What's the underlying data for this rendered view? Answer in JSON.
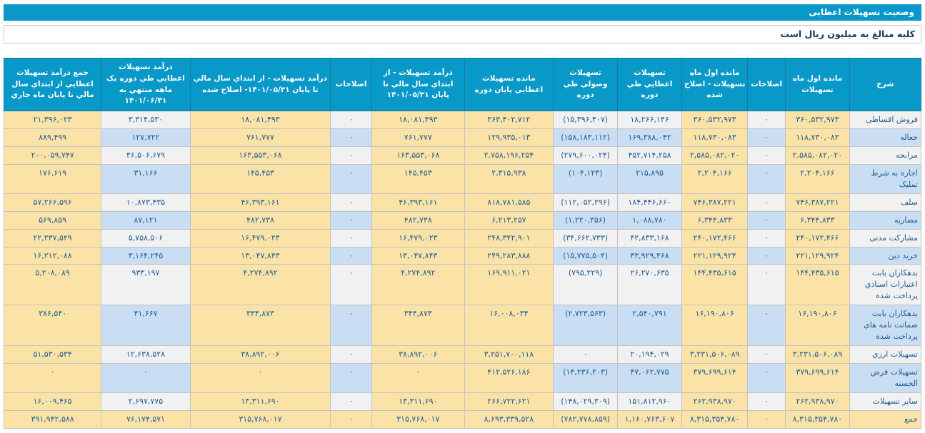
{
  "title_bar": {
    "text": "وضعیت تسهیلات اعطایی"
  },
  "note_bar": {
    "text": "کلیه مبالغ به میلیون ریال است"
  },
  "colors": {
    "accent": "#0999C8",
    "cream_cell": "#FBE3A8",
    "row_blue": "#C9DEF2",
    "row_gray": "#F1F1F1",
    "number_text": "#1F5D94",
    "negative_text": "#E00000"
  },
  "table": {
    "columns": [
      {
        "label": "شرح",
        "kind": "label",
        "width": "7.8%"
      },
      {
        "label": "مانده اول ماه تسهیلات",
        "kind": "cream",
        "width": "7.0%"
      },
      {
        "label": "اصلاحات",
        "kind": "plain",
        "width": "4.1%"
      },
      {
        "label": "مانده اول ماه تسهیلات - اصلاح شده",
        "kind": "cream",
        "width": "7.2%"
      },
      {
        "label": "تسهیلات اعطایي طي دوره",
        "kind": "plain",
        "width": "7.0%"
      },
      {
        "label": "تسهیلات وصولي طي دوره",
        "kind": "plain",
        "width": "7.0%"
      },
      {
        "label": "مانده تسهیلات اعطایي پایان دوره",
        "kind": "cream",
        "width": "9.7%"
      },
      {
        "label": "درآمد تسهیلات - از ابتداي سال مالي تا پایان ۱۴۰۱/۰۵/۳۱",
        "kind": "cream",
        "width": "10.1%"
      },
      {
        "label": "اصلاحات",
        "kind": "plain",
        "width": "4.5%"
      },
      {
        "label": "درآمد تسهیلات - از ابتداي سال مالي تا پایان ۱۴۰۱/۰۵/۳۱- اصلاح شده",
        "kind": "cream",
        "width": "15.3%"
      },
      {
        "label": "درآمد تسهیلات اعطایي طي دوره یک ماهه منتهي به ۱۴۰۱/۰۶/۳۱",
        "kind": "plain",
        "width": "9.7%"
      },
      {
        "label": "جمع درآمد تسهیلات اعطایي از ابتداي سال مالي تا پایان ماه جاري",
        "kind": "cream",
        "width": "10.6%"
      }
    ],
    "rows": [
      {
        "label": "فروش اقساطی",
        "total": false,
        "values": [
          "۳۶۰,۵۳۲,۹۷۳",
          "۰",
          "۳۶۰,۵۳۲,۹۷۳",
          "۱۸,۲۶۶,۱۴۶",
          "(۱۵,۳۹۶,۴۰۷)",
          "۳۶۳,۴۰۲,۷۱۲",
          "۱۸,۰۸۱,۴۹۳",
          "۰",
          "۱۸,۰۸۱,۴۹۳",
          "۳,۳۱۴,۵۳۰",
          "۲۱,۳۹۶,۰۲۳"
        ]
      },
      {
        "label": "جعاله",
        "total": false,
        "values": [
          "۱۱۸,۷۳۰,۰۸۳",
          "۰",
          "۱۱۸,۷۳۰,۰۸۳",
          "۱۶۹,۳۸۸,۰۴۲",
          "(۱۵۸,۱۸۳,۱۱۲)",
          "۱۲۹,۹۳۵,۰۱۳",
          "۷۶۱,۷۷۷",
          "۰",
          "۷۶۱,۷۷۷",
          "۱۲۷,۷۲۲",
          "۸۸۹,۴۹۹"
        ]
      },
      {
        "label": "مرابحه",
        "total": false,
        "values": [
          "۲,۵۸۵,۰۸۲,۰۲۰",
          "۰",
          "۲,۵۸۵,۰۸۲,۰۲۰",
          "۴۵۲,۷۱۴,۲۵۸",
          "(۲۷۹,۶۰۰,۰۲۴)",
          "۲,۷۵۸,۱۹۶,۲۵۴",
          "۱۶۳,۵۵۳,۰۶۸",
          "۰",
          "۱۶۳,۵۵۳,۰۶۸",
          "۳۶,۵۰۶,۶۷۹",
          "۲۰۰,۰۵۹,۷۴۷"
        ]
      },
      {
        "label": "اجاره به شرط تملیک",
        "total": false,
        "values": [
          "۲,۲۰۴,۱۶۶",
          "۰",
          "۲,۲۰۴,۱۶۶",
          "۲۱۵,۸۹۵",
          "(۱۰۴,۱۲۳)",
          "۲,۳۱۵,۹۳۸",
          "۱۴۵,۴۵۳",
          "۰",
          "۱۴۵,۴۵۳",
          "۳۱,۱۶۶",
          "۱۷۶,۶۱۹"
        ]
      },
      {
        "label": "سلف",
        "total": false,
        "values": [
          "۷۴۶,۳۸۷,۲۲۱",
          "۰",
          "۷۴۶,۳۸۷,۲۲۱",
          "۱۸۴,۴۴۶,۶۶۰",
          "(۱۱۲,۰۵۲,۲۹۶)",
          "۸۱۸,۷۸۱,۵۸۵",
          "۴۶,۳۹۳,۱۶۱",
          "۰",
          "۴۶,۳۹۳,۱۶۱",
          "۱۰,۸۷۳,۴۳۵",
          "۵۷,۲۶۶,۵۹۶"
        ]
      },
      {
        "label": "مضاربه",
        "total": false,
        "values": [
          "۶,۳۴۴,۸۳۳",
          "۰",
          "۶,۳۴۴,۸۳۳",
          "۱,۰۸۸,۷۸۰",
          "(۱,۲۲۰,۳۵۶)",
          "۶,۲۱۳,۲۵۷",
          "۴۸۲,۷۳۸",
          "۰",
          "۴۸۲,۷۳۸",
          "۸۷,۱۲۱",
          "۵۶۹,۸۵۹"
        ]
      },
      {
        "label": "مشارکت مدنی",
        "total": false,
        "values": [
          "۲۴۰,۱۷۲,۴۶۶",
          "۰",
          "۲۴۰,۱۷۲,۴۶۶",
          "۴۲,۸۳۳,۱۶۸",
          "(۳۴,۶۶۲,۷۳۳)",
          "۲۴۸,۳۴۲,۹۰۱",
          "۱۶,۴۷۹,۰۲۳",
          "۰",
          "۱۶,۴۷۹,۰۲۳",
          "۵,۷۵۸,۵۰۶",
          "۲۲,۲۳۷,۵۲۹"
        ]
      },
      {
        "label": "خرید دین",
        "total": false,
        "values": [
          "۲۲۱,۱۲۹,۹۲۴",
          "۰",
          "۲۲۱,۱۲۹,۹۲۴",
          "۴۳,۹۲۹,۴۶۸",
          "(۱۵,۷۷۵,۵۰۴)",
          "۲۴۹,۲۸۳,۸۸۸",
          "۱۳,۰۴۷,۸۴۳",
          "۰",
          "۱۳,۰۴۷,۸۴۳",
          "۳,۱۶۴,۲۴۵",
          "۱۶,۲۱۲,۰۸۸"
        ]
      },
      {
        "label": "بدهکاران بابت اعتبارات اسنادي پرداخت شده",
        "total": false,
        "values": [
          "۱۴۴,۴۳۵,۶۱۵",
          "۰",
          "۱۴۴,۴۳۵,۶۱۵",
          "۲۶,۲۷۰,۶۳۵",
          "(۷۹۵,۲۲۹)",
          "۱۶۹,۹۱۱,۰۲۱",
          "۴,۲۷۴,۸۹۲",
          "۰",
          "۴,۲۷۴,۸۹۲",
          "۹۳۳,۱۹۷",
          "۵,۲۰۸,۰۸۹"
        ]
      },
      {
        "label": "بدهکاران بابت ضمانت نامه هاي پرداخت شده",
        "total": false,
        "values": [
          "۱۶,۱۹۰,۸۰۶",
          "۰",
          "۱۶,۱۹۰,۸۰۶",
          "۲,۵۴۰,۷۹۱",
          "(۲,۷۲۳,۵۶۳)",
          "۱۶,۰۰۸,۰۳۴",
          "۳۴۴,۸۷۳",
          "۰",
          "۳۴۴,۸۷۳",
          "۴۱,۶۶۷",
          "۳۸۶,۵۴۰"
        ]
      },
      {
        "label": "تسهیلات ارزي",
        "total": false,
        "values": [
          "۳,۲۳۱,۵۰۶,۰۸۹",
          "۰",
          "۳,۲۳۱,۵۰۶,۰۸۹",
          "۲۰,۱۹۴,۰۲۹",
          "۰",
          "۳,۲۵۱,۷۰۰,۱۱۸",
          "۳۸,۸۹۲,۰۰۶",
          "۰",
          "۳۸,۸۹۲,۰۰۶",
          "۱۲,۶۳۸,۵۲۸",
          "۵۱,۵۳۰,۵۳۴"
        ]
      },
      {
        "label": "تسهیلات قرض الحسنه",
        "total": false,
        "values": [
          "۳۷۹,۶۹۹,۶۱۴",
          "۰",
          "۳۷۹,۶۹۹,۶۱۴",
          "۴۷,۰۶۲,۷۷۵",
          "(۱۴,۲۳۶,۲۰۳)",
          "۴۱۲,۵۲۶,۱۸۶",
          "۰",
          "۰",
          "۰",
          "۰",
          "۰"
        ]
      },
      {
        "label": "سایر تسهیلات",
        "total": false,
        "values": [
          "۲۶۲,۹۳۸,۹۷۰",
          "۰",
          "۲۶۲,۹۳۸,۹۷۰",
          "۱۵۱,۸۱۲,۹۶۰",
          "(۱۴۸,۰۲۹,۳۰۹)",
          "۲۶۶,۷۲۲,۶۲۱",
          "۱۳,۳۱۱,۶۹۰",
          "۰",
          "۱۳,۳۱۱,۶۹۰",
          "۲,۶۹۷,۷۷۵",
          "۱۶,۰۰۹,۴۶۵"
        ]
      },
      {
        "label": "جمع",
        "total": true,
        "values": [
          "۸,۳۱۵,۳۵۴,۷۸۰",
          "۰",
          "۸,۳۱۵,۳۵۴,۷۸۰",
          "۱,۱۶۰,۷۶۳,۶۰۷",
          "(۷۸۲,۷۷۸,۸۵۹)",
          "۸,۶۹۳,۳۳۹,۵۲۸",
          "۳۱۵,۷۶۸,۰۱۷",
          "۰",
          "۳۱۵,۷۶۸,۰۱۷",
          "۷۶,۱۷۴,۵۷۱",
          "۳۹۱,۹۴۲,۵۸۸"
        ]
      }
    ]
  }
}
